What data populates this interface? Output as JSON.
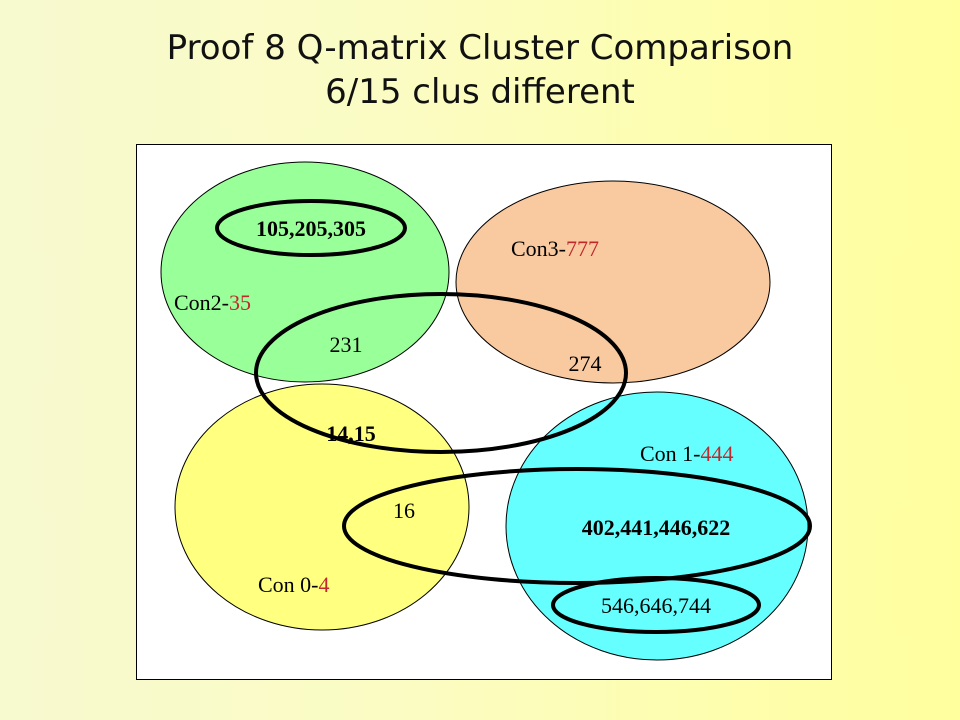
{
  "title": {
    "line1": "Proof 8 Q-matrix Cluster Comparison",
    "line2": "6/15 clus different"
  },
  "clusters": {
    "con2": {
      "prefix": "Con2-",
      "count": "35",
      "color": "#99ff99"
    },
    "con3": {
      "prefix": "Con3-",
      "count": "777",
      "color": "#f9c9a0"
    },
    "con0": {
      "prefix": "Con 0-",
      "count": "4",
      "color": "#ffff80"
    },
    "con1": {
      "prefix": "Con 1-",
      "count": "444",
      "color": "#66ffff"
    }
  },
  "items": {
    "item_105": "105,205,305",
    "item_231": "231",
    "item_274": "274",
    "item_14_15": "14,15",
    "item_16": "16",
    "item_402": "402,441,446,622",
    "item_546": "546,646,744"
  },
  "colors": {
    "count_red": "#c0282e",
    "outline": "#000000"
  }
}
